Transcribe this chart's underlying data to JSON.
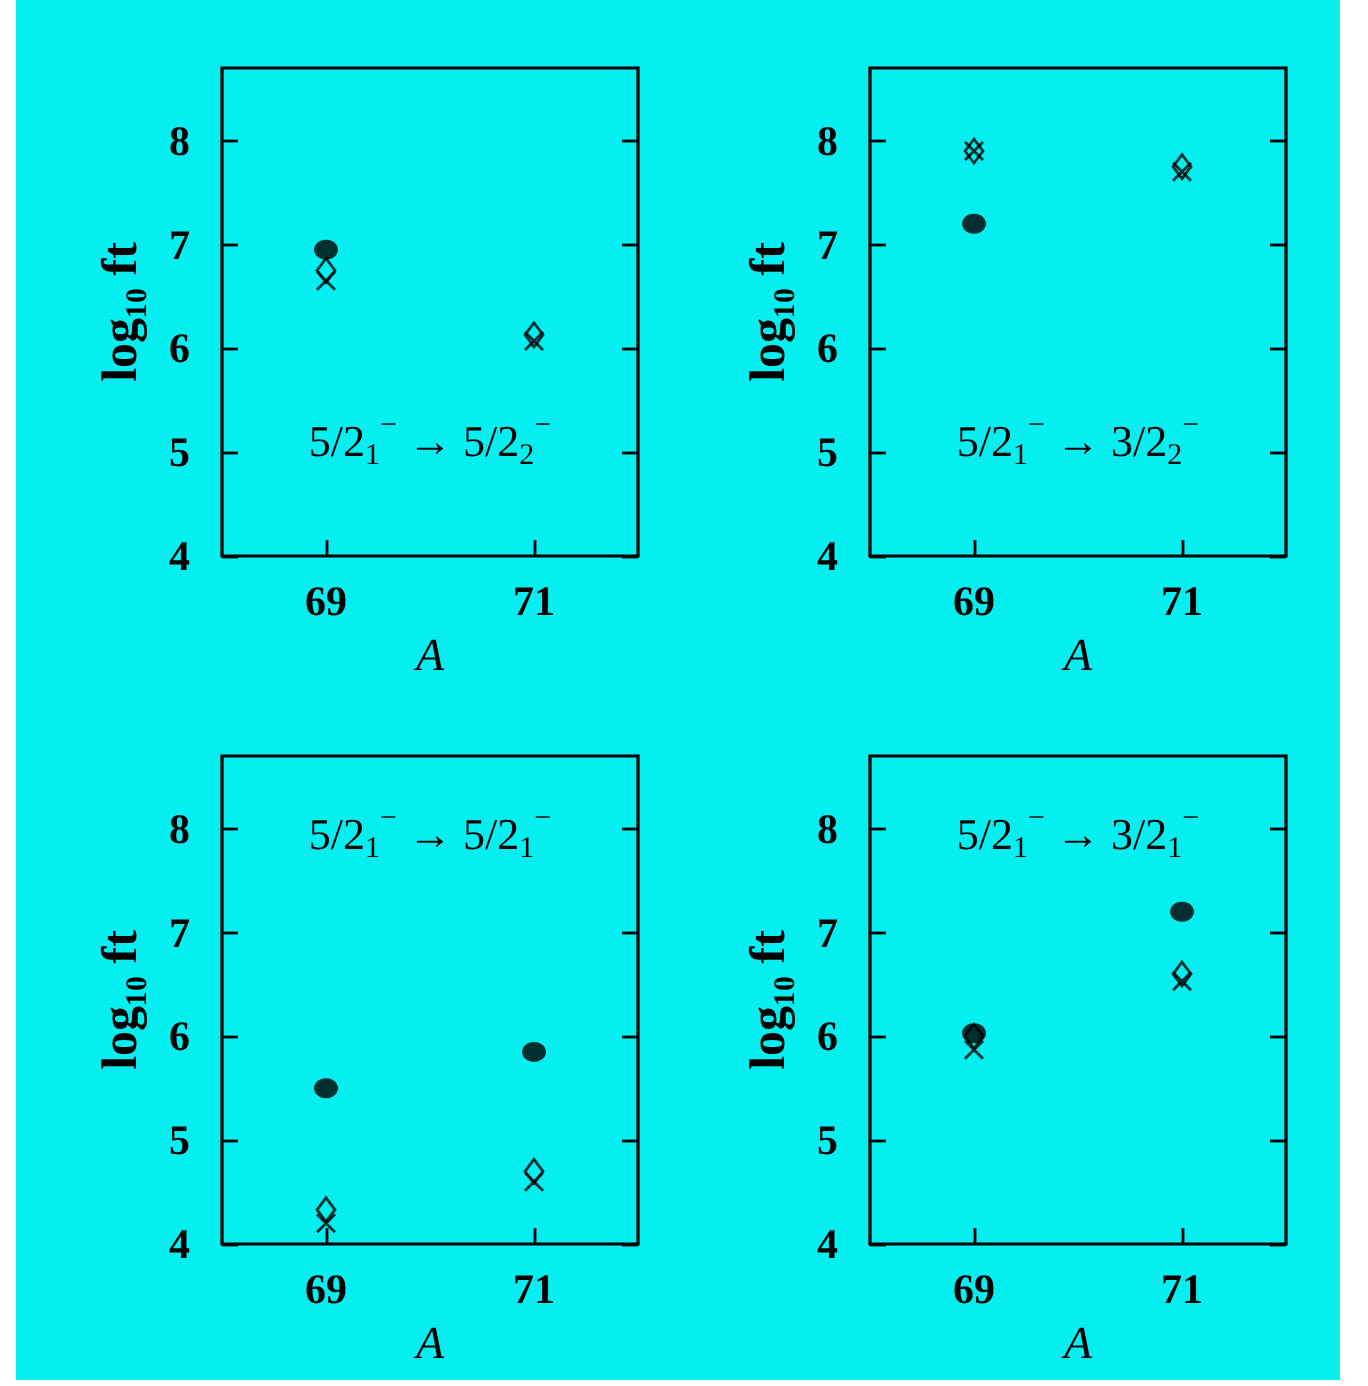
{
  "chart_data": [
    {
      "type": "scatter",
      "categories": [
        "69",
        "71"
      ],
      "series": [
        {
          "color": "#000000",
          "marker": "circle",
          "values": [
            6.95,
            null
          ]
        },
        {
          "color": "#000000",
          "marker": "diamond",
          "values": [
            6.75,
            6.13
          ]
        },
        {
          "color": "#000000",
          "marker": "cross",
          "values": [
            6.65,
            6.07
          ]
        }
      ],
      "ylim": [
        4,
        8.7
      ],
      "yticks": [
        4,
        5,
        6,
        7,
        8
      ],
      "xlabel": "A",
      "ylabel": "log₁₀ ft",
      "annotations": [
        "5/2$_{1}$$^{−}$ → 5/2$_{2}$$^{−}$"
      ]
    },
    {
      "type": "scatter",
      "categories": [
        "69",
        "71"
      ],
      "series": [
        {
          "color": "#000000",
          "marker": "circle",
          "values": [
            7.2,
            null
          ]
        },
        {
          "color": "#000000",
          "marker": "diamond",
          "values": [
            7.9,
            7.75
          ]
        },
        {
          "color": "#000000",
          "marker": "cross",
          "values": [
            7.9,
            7.7
          ]
        }
      ],
      "ylim": [
        4,
        8.7
      ],
      "yticks": [
        4,
        5,
        6,
        7,
        8
      ],
      "xlabel": "A",
      "ylabel": "log₁₀ ft",
      "annotations": [
        "5/2$_{1}$$^{−}$ → 3/2$_{2}$$^{−}$"
      ]
    },
    {
      "type": "scatter",
      "categories": [
        "69",
        "71"
      ],
      "series": [
        {
          "color": "#000000",
          "marker": "circle",
          "values": [
            5.5,
            5.85
          ]
        },
        {
          "color": "#000000",
          "marker": "diamond",
          "values": [
            4.33,
            4.7
          ]
        },
        {
          "color": "#000000",
          "marker": "cross",
          "values": [
            4.2,
            4.6
          ]
        }
      ],
      "ylim": [
        4,
        8.7
      ],
      "yticks": [
        4,
        5,
        6,
        7,
        8
      ],
      "xlabel": "A",
      "ylabel": "log₁₀ ft",
      "annotations": [
        "5/2$_{1}$$^{−}$ → 5/2$_{1}$$^{−}$"
      ]
    },
    {
      "type": "scatter",
      "categories": [
        "69",
        "71"
      ],
      "series": [
        {
          "color": "#000000",
          "marker": "circle",
          "values": [
            6.03,
            7.2
          ]
        },
        {
          "color": "#000000",
          "marker": "diamond",
          "values": [
            6.0,
            6.6
          ]
        },
        {
          "color": "#000000",
          "marker": "cross",
          "values": [
            5.87,
            6.53
          ]
        }
      ],
      "ylim": [
        4,
        8.7
      ],
      "yticks": [
        4,
        5,
        6,
        7,
        8
      ],
      "xlabel": "A",
      "ylabel": "log₁₀ ft",
      "annotations": [
        "5/2$_{1}$$^{−}$ → 3/2$_{1}$$^{−}$"
      ]
    }
  ]
}
